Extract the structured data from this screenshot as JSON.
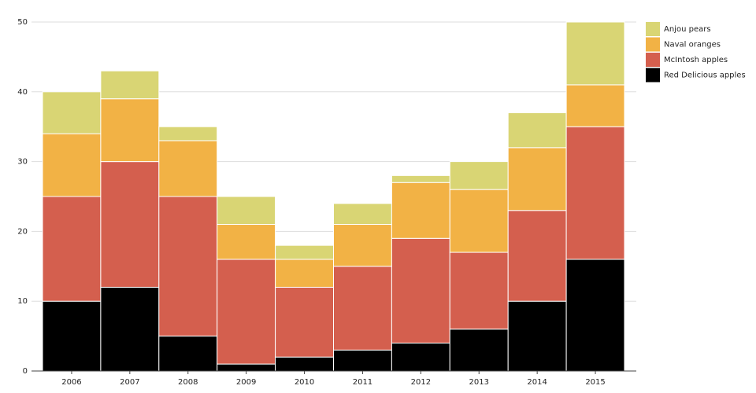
{
  "chart_data": {
    "type": "stacked-bar",
    "categories": [
      "2006",
      "2007",
      "2008",
      "2009",
      "2010",
      "2011",
      "2012",
      "2013",
      "2014",
      "2015"
    ],
    "series": [
      {
        "name": "Red Delicious apples",
        "color": "#000000",
        "values": [
          10,
          12,
          5,
          1,
          2,
          3,
          4,
          6,
          10,
          16
        ]
      },
      {
        "name": "McIntosh apples",
        "color": "#d45f4e",
        "values": [
          15,
          18,
          20,
          15,
          10,
          12,
          15,
          11,
          13,
          19
        ]
      },
      {
        "name": "Naval oranges",
        "color": "#f2b245",
        "values": [
          9,
          9,
          8,
          5,
          4,
          6,
          8,
          9,
          9,
          6
        ]
      },
      {
        "name": "Anjou pears",
        "color": "#d9d574",
        "values": [
          6,
          4,
          2,
          4,
          2,
          3,
          1,
          4,
          5,
          9
        ]
      }
    ],
    "ylim": [
      0,
      50
    ],
    "yticks": [
      0,
      10,
      20,
      30,
      40,
      50
    ],
    "grid": true,
    "legend": "top-right"
  }
}
